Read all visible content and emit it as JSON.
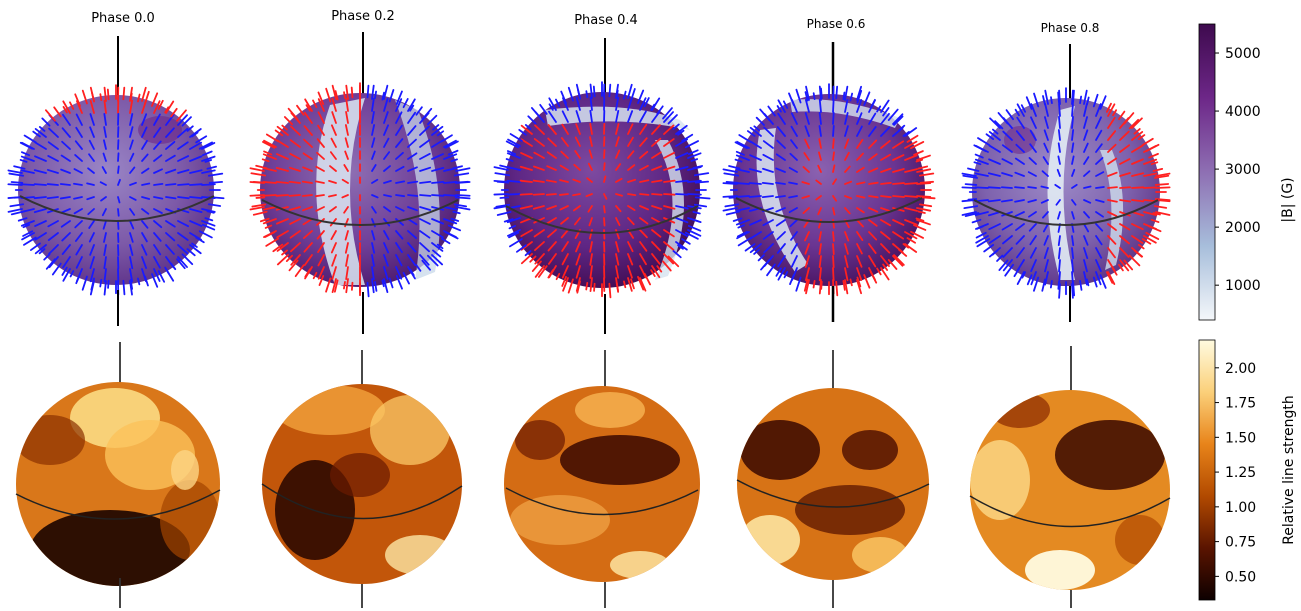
{
  "phases": [
    {
      "label": "Phase 0.0"
    },
    {
      "label": "Phase 0.2"
    },
    {
      "label": "Phase 0.4"
    },
    {
      "label": "Phase 0.6"
    },
    {
      "label": "Phase 0.8"
    }
  ],
  "colorbars": {
    "field": {
      "label": "|B| (G)",
      "ticks": [
        "5000",
        "4000",
        "3000",
        "2000",
        "1000"
      ],
      "tick_values": [
        5000,
        4000,
        3000,
        2000,
        1000
      ],
      "range": [
        400,
        5500
      ],
      "colors": [
        "#f4f7fa",
        "#a7bedb",
        "#8e6fb3",
        "#6d2788",
        "#3e0a4e"
      ]
    },
    "line_strength": {
      "label": "Relative line strength",
      "ticks": [
        "2.00",
        "1.75",
        "1.50",
        "1.25",
        "1.00",
        "0.75",
        "0.50"
      ],
      "tick_values": [
        2.0,
        1.75,
        1.5,
        1.25,
        1.0,
        0.75,
        0.5
      ],
      "range": [
        0.33,
        2.2
      ],
      "colors": [
        "#0d0000",
        "#5a1400",
        "#b24a00",
        "#e8841a",
        "#fbd07a",
        "#fffbe0"
      ]
    }
  },
  "vector_colors": {
    "positive": "#ff2020",
    "negative": "#1a1aff"
  }
}
